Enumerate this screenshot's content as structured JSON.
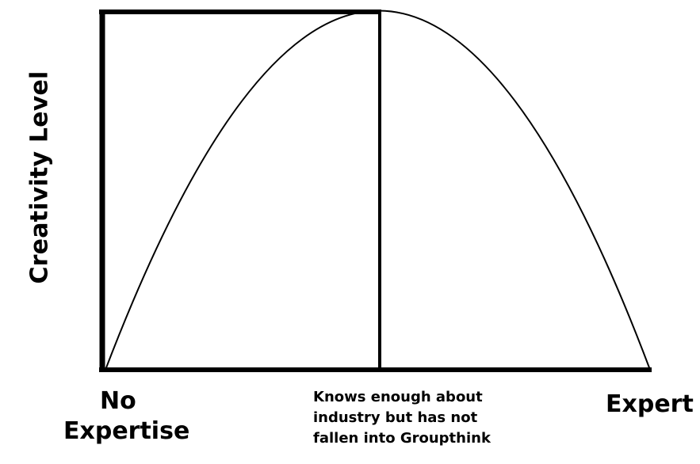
{
  "diagram": {
    "y_axis_label": "Creativity Level",
    "x_labels": {
      "left": [
        "No",
        "Expertise"
      ],
      "middle": [
        "Knows enough about",
        "industry but has not",
        "fallen into Groupthink"
      ],
      "right": "Expert"
    },
    "colors": {
      "line": "#000000",
      "background": "#ffffff"
    }
  }
}
